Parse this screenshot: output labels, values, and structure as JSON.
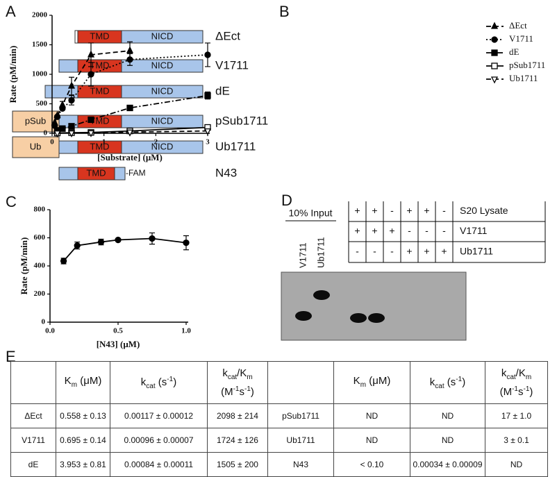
{
  "panel_labels": [
    "A",
    "B",
    "C",
    "D",
    "E"
  ],
  "constructs": [
    {
      "name": "ΔEct",
      "parts": [
        "TMD",
        "NICD"
      ]
    },
    {
      "name": "V1711",
      "parts": [
        "TMD",
        "NICD"
      ]
    },
    {
      "name": "dE",
      "parts": [
        "TMD",
        "NICD"
      ]
    },
    {
      "name": "pSub1711",
      "tag": "pSub",
      "parts": [
        "TMD",
        "NICD"
      ]
    },
    {
      "name": "Ub1711",
      "tag": "Ub",
      "parts": [
        "TMD",
        "NICD"
      ]
    },
    {
      "name": "N43",
      "parts": [
        "TMD"
      ],
      "suffix": "-FAM"
    }
  ],
  "chart_data": [
    {
      "type": "scatter-line",
      "y_label": "Rate (pM/min)",
      "x_label": "[Substrate] (μM)",
      "xlim": [
        0,
        3
      ],
      "ylim": [
        0,
        2000
      ],
      "xticks": [
        0,
        1,
        2,
        3
      ],
      "yticks": [
        0,
        500,
        1000,
        1500,
        2000
      ],
      "legend": "right",
      "series": [
        {
          "name": "ΔEct",
          "color": "#000",
          "marker": "triangle-up",
          "marker_fill": "filled",
          "dash": "dashed",
          "x": [
            0.05,
            0.1,
            0.2,
            0.375,
            0.75,
            1.5
          ],
          "values": [
            180,
            300,
            480,
            800,
            1330,
            1400
          ],
          "errors": [
            null,
            null,
            60,
            150,
            200,
            150
          ]
        },
        {
          "name": "V1711",
          "color": "#000",
          "marker": "circle",
          "marker_fill": "filled",
          "dash": "dotted",
          "x": [
            0.05,
            0.1,
            0.2,
            0.375,
            0.75,
            1.5,
            3
          ],
          "values": [
            130,
            280,
            420,
            560,
            1000,
            1250,
            1330
          ],
          "errors": [
            null,
            null,
            null,
            80,
            200,
            100,
            200
          ]
        },
        {
          "name": "dE",
          "color": "#000",
          "marker": "square",
          "marker_fill": "filled",
          "dash": "dashdot",
          "x": [
            0.1,
            0.2,
            0.375,
            0.75,
            1.5,
            3
          ],
          "values": [
            50,
            80,
            120,
            230,
            430,
            640
          ],
          "errors": [
            null,
            null,
            null,
            null,
            20,
            60
          ]
        },
        {
          "name": "pSub1711",
          "color": "#000",
          "marker": "square",
          "marker_fill": "open",
          "dash": "solid",
          "x": [
            0.1,
            0.375,
            0.75,
            1.5,
            3
          ],
          "values": [
            5,
            10,
            15,
            40,
            100
          ],
          "errors": [
            null,
            null,
            null,
            null,
            null
          ]
        },
        {
          "name": "Ub1711",
          "color": "#000",
          "marker": "triangle-down",
          "marker_fill": "open",
          "dash": "dashed",
          "x": [
            0.1,
            0.375,
            0.75,
            1.5,
            3
          ],
          "values": [
            3,
            5,
            8,
            20,
            40
          ],
          "errors": [
            null,
            null,
            null,
            null,
            null
          ]
        }
      ]
    },
    {
      "type": "scatter-line",
      "y_label": "Rate (pM/min)",
      "x_label": "[N43] (μM)",
      "xlim": [
        0,
        1
      ],
      "ylim": [
        0,
        800
      ],
      "xticks": [
        {
          "value": 0,
          "label": "0.0"
        },
        {
          "value": 0.5,
          "label": "0.5"
        },
        {
          "value": 1,
          "label": "1.0"
        }
      ],
      "yticks": [
        0,
        200,
        400,
        600,
        800
      ],
      "series": [
        {
          "name": "N43",
          "color": "#000",
          "marker": "circle",
          "marker_fill": "filled",
          "dash": "solid",
          "x": [
            0.1,
            0.2,
            0.375,
            0.5,
            0.75,
            1
          ],
          "values": [
            435,
            545,
            570,
            585,
            595,
            565
          ],
          "errors": [
            20,
            25,
            20,
            null,
            40,
            50
          ]
        }
      ]
    }
  ],
  "binding_assay": {
    "input_label": "10% Input",
    "lanes": [
      "V1711",
      "Ub1711"
    ],
    "conditions": [
      {
        "name": "S20 Lysate",
        "signs": [
          "+",
          "+",
          "-",
          "+",
          "+",
          "-"
        ]
      },
      {
        "name": "V1711",
        "signs": [
          "+",
          "+",
          "+",
          "-",
          "-",
          "-"
        ]
      },
      {
        "name": "Ub1711",
        "signs": [
          "-",
          "-",
          "-",
          "+",
          "+",
          "+"
        ]
      }
    ]
  },
  "table": {
    "header": [
      [
        "K",
        "m",
        " (μM)"
      ],
      [
        "k",
        "cat",
        " (s",
        "-1",
        ")"
      ],
      [
        "k",
        "cat",
        "/K",
        "m",
        "(M",
        "-1",
        "s",
        "-1",
        ")"
      ],
      [
        "K",
        "m",
        " (μM)"
      ],
      [
        "k",
        "cat",
        " (s",
        "-1",
        ")"
      ],
      [
        "k",
        "cat",
        "/K",
        "m",
        "(M",
        "-1",
        "s",
        "-1",
        ")"
      ]
    ],
    "rows": [
      [
        "ΔEct",
        "0.558 ± 0.13",
        "0.00117 ± 0.00012",
        "2098 ± 214",
        "pSub1711",
        "ND",
        "ND",
        "17 ± 1.0"
      ],
      [
        "V1711",
        "0.695 ± 0.14",
        "0.00096 ± 0.00007",
        "1724 ± 126",
        "Ub1711",
        "ND",
        "ND",
        "3 ± 0.1"
      ],
      [
        "dE",
        "3.953 ± 0.81",
        "0.00084 ± 0.00011",
        "1505 ± 200",
        "N43",
        "< 0.10",
        "0.00034 ± 0.00009",
        "ND"
      ]
    ]
  }
}
